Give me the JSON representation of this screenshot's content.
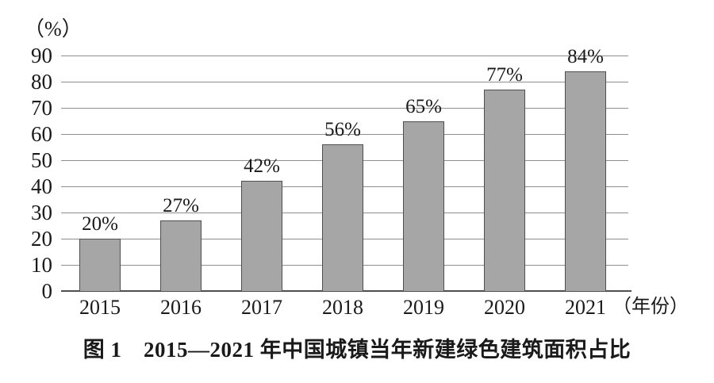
{
  "chart": {
    "unit_label": "（%）",
    "x_axis_suffix": "（年份）",
    "caption": "图 1　2015—2021 年中国城镇当年新建绿色建筑面积占比"
  },
  "chart_data": {
    "type": "bar",
    "categories": [
      "2015",
      "2016",
      "2017",
      "2018",
      "2019",
      "2020",
      "2021"
    ],
    "values": [
      20,
      27,
      42,
      56,
      65,
      77,
      84
    ],
    "value_labels": [
      "20%",
      "27%",
      "42%",
      "56%",
      "65%",
      "77%",
      "84%"
    ],
    "title": "图 1　2015—2021 年中国城镇当年新建绿色建筑面积占比",
    "xlabel": "年份",
    "ylabel": "%",
    "ylim": [
      0,
      90
    ],
    "ytick_step": 10,
    "ytick_labels": [
      "0",
      "10",
      "20",
      "30",
      "40",
      "50",
      "60",
      "70",
      "80",
      "90"
    ],
    "grid": true,
    "legend": "none",
    "bar_color": "#a6a6a6",
    "bar_border_color": "#4f4f4f",
    "gridline_color": "#8f8f8f",
    "axis_color": "#4f4f4f",
    "text_color": "#1a1a1a"
  }
}
